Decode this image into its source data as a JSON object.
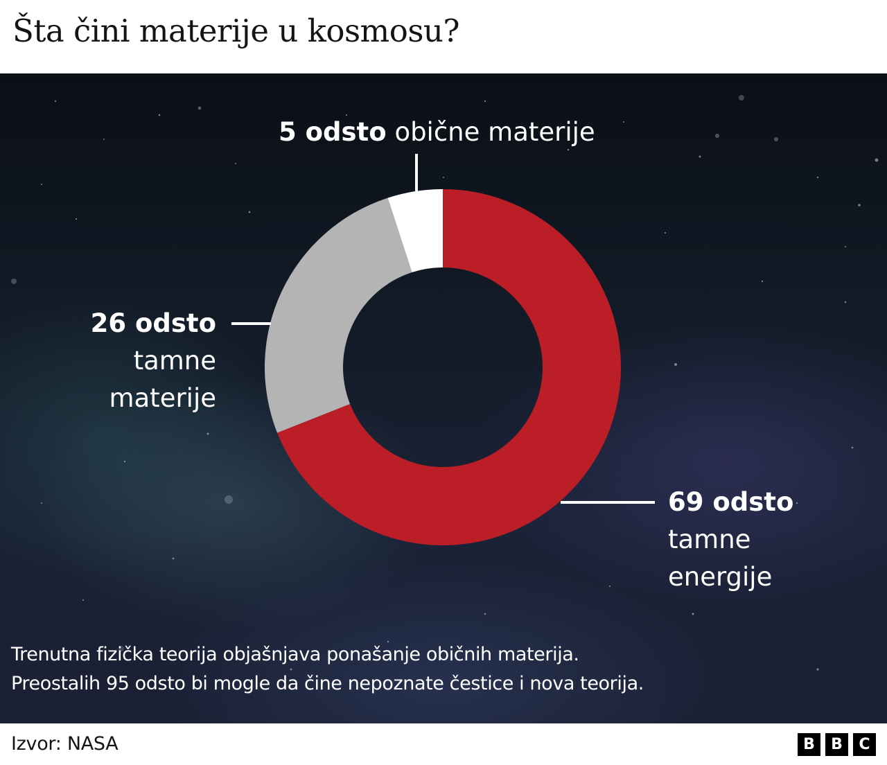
{
  "title": "Šta čini materije u kosmosu?",
  "chart_data": {
    "type": "pie",
    "variant": "donut",
    "title": "Šta čini materije u kosmosu?",
    "categories": [
      "tamne energije",
      "tamne materije",
      "obične materije"
    ],
    "values": [
      69,
      26,
      5
    ],
    "unit": "odsto",
    "colors": [
      "#bb1e26",
      "#b3b4b3",
      "#ffffff"
    ],
    "start_angle_deg": 0,
    "direction": "clockwise",
    "legend": "none (direct labels with leader lines)"
  },
  "labels": {
    "top": {
      "bold": "5 odsto",
      "text": "obične materije"
    },
    "left": {
      "bold": "26 odsto",
      "line1": "tamne",
      "line2": "materije"
    },
    "right": {
      "bold": "69 odsto",
      "line1": "tamne",
      "line2": "energije"
    }
  },
  "note": {
    "line1": "Trenutna fizička teorija objašnjava ponašanje običnih materija.",
    "line2": "Preostalih 95 odsto bi mogle da čine nepoznate čestice i nova teorija."
  },
  "footer": {
    "source": "Izvor: NASA",
    "logo": [
      "B",
      "B",
      "C"
    ]
  }
}
